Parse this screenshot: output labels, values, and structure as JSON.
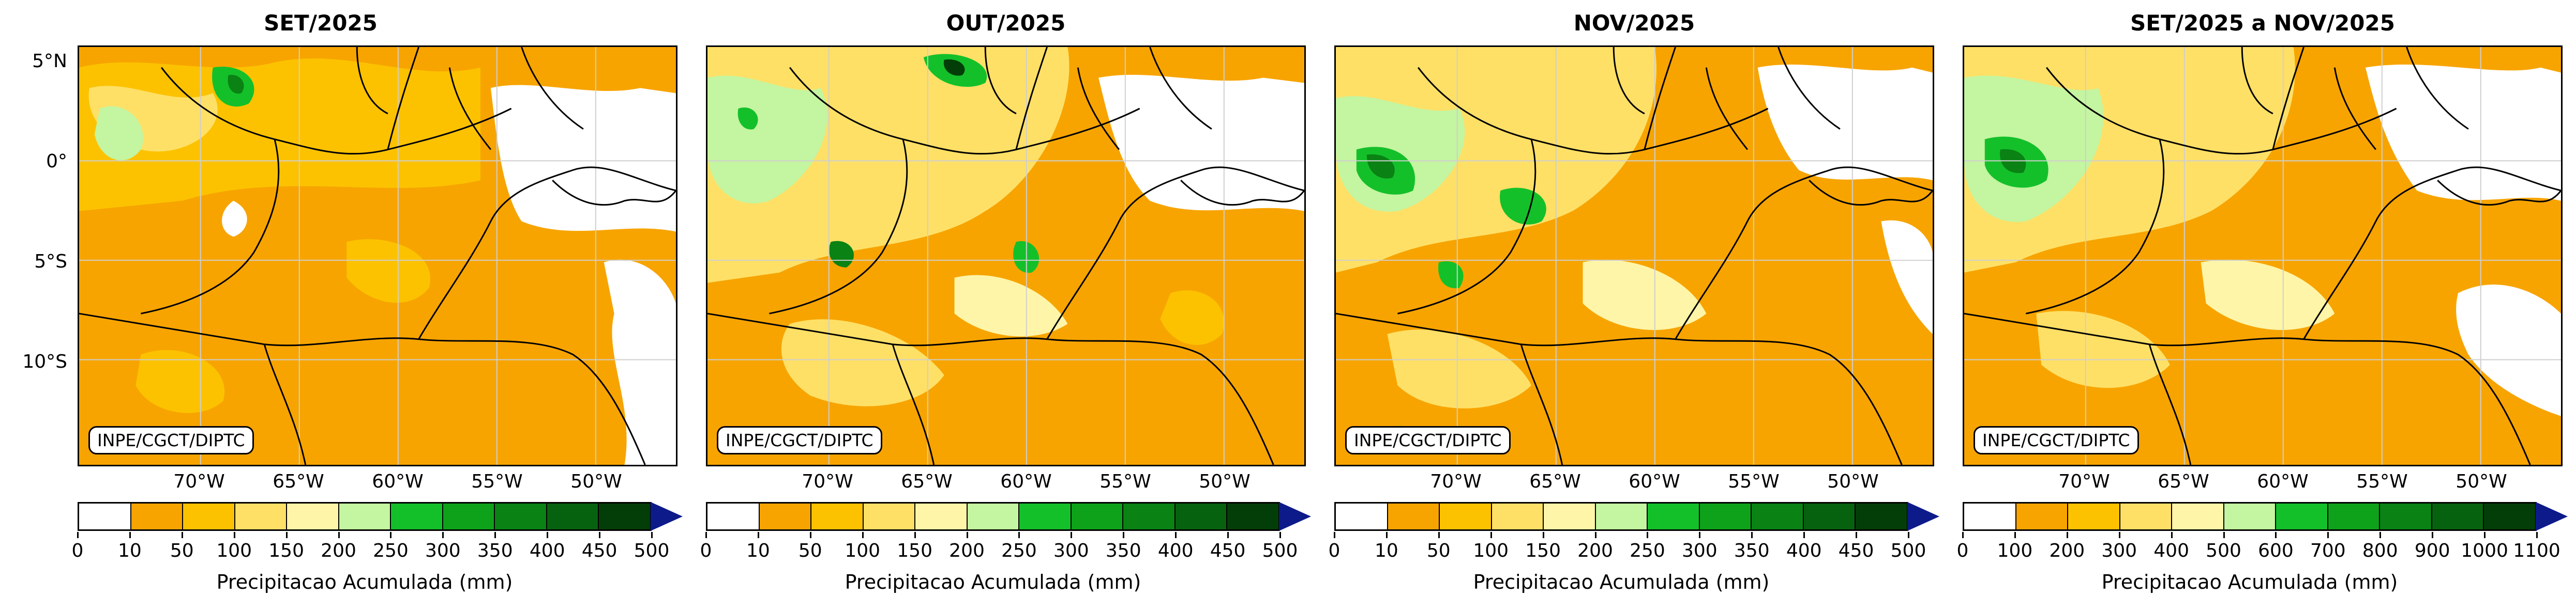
{
  "panels": [
    {
      "title": "SET/2025",
      "label": "INPE/CGCT/DIPTC",
      "ticks": [
        "0",
        "10",
        "50",
        "100",
        "150",
        "200",
        "250",
        "300",
        "350",
        "400",
        "450",
        "500"
      ],
      "colorbar_label": "Precipitacao Acumulada (mm)"
    },
    {
      "title": "OUT/2025",
      "label": "INPE/CGCT/DIPTC",
      "ticks": [
        "0",
        "10",
        "50",
        "100",
        "150",
        "200",
        "250",
        "300",
        "350",
        "400",
        "450",
        "500"
      ],
      "colorbar_label": "Precipitacao Acumulada (mm)"
    },
    {
      "title": "NOV/2025",
      "label": "INPE/CGCT/DIPTC",
      "ticks": [
        "0",
        "10",
        "50",
        "100",
        "150",
        "200",
        "250",
        "300",
        "350",
        "400",
        "450",
        "500"
      ],
      "colorbar_label": "Precipitacao Acumulada (mm)"
    },
    {
      "title": "SET/2025 a NOV/2025",
      "label": "INPE/CGCT/DIPTC",
      "ticks": [
        "0",
        "100",
        "200",
        "300",
        "400",
        "500",
        "600",
        "700",
        "800",
        "900",
        "1000",
        "1100"
      ],
      "colorbar_label": "Precipitacao Acumulada (mm)"
    }
  ],
  "lat_labels": [
    "5°N",
    "0°",
    "5°S",
    "10°S"
  ],
  "lon_labels": [
    "70°W",
    "65°W",
    "60°W",
    "55°W",
    "50°W"
  ],
  "colors": [
    "#ffffff",
    "#f7a400",
    "#fcc200",
    "#ffe066",
    "#fff5a8",
    "#c4f5a0",
    "#14c02a",
    "#0ea21a",
    "#0a8214",
    "#07620f",
    "#033e08"
  ],
  "extend_color": "#0d1a8a"
}
